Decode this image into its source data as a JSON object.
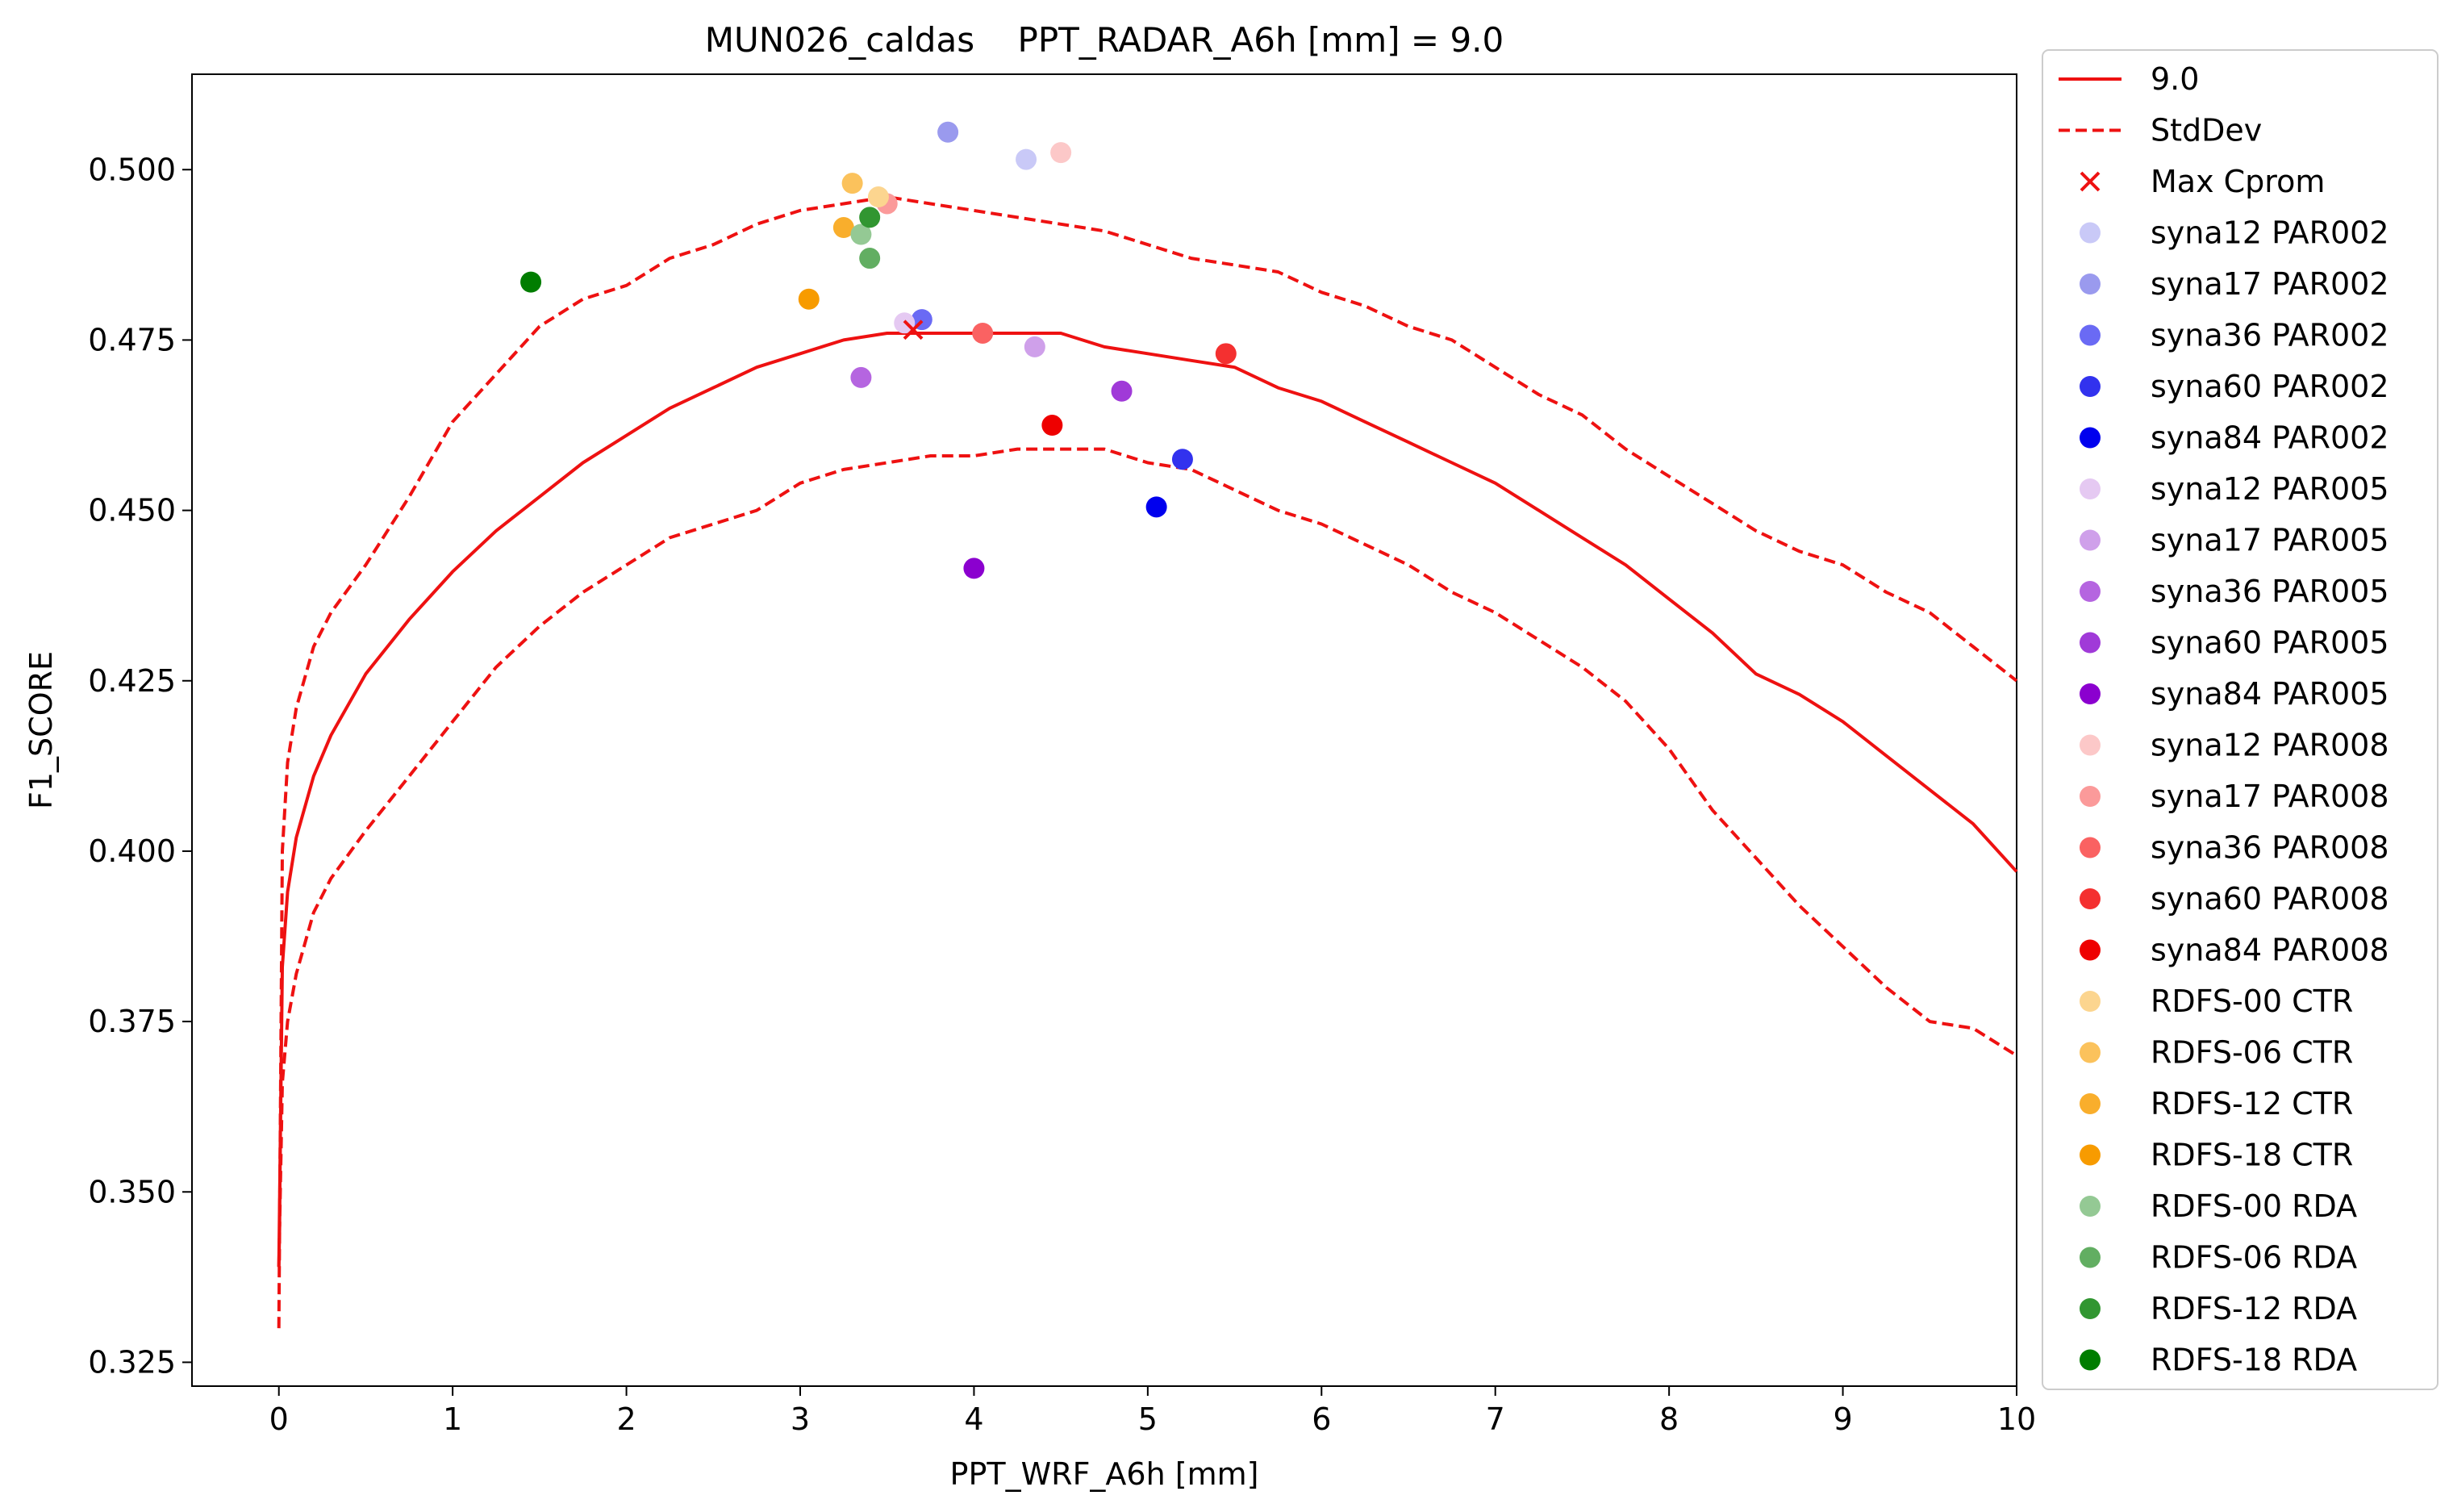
{
  "chart_data": {
    "type": "scatter",
    "title": "MUN026_caldas    PPT_RADAR_A6h [mm] = 9.0",
    "xlabel": "PPT_WRF_A6h [mm]",
    "ylabel": "F1_SCORE",
    "xlim": [
      -0.5,
      10
    ],
    "ylim": [
      0.3215,
      0.514
    ],
    "xticks": [
      0,
      1,
      2,
      3,
      4,
      5,
      6,
      7,
      8,
      9,
      10
    ],
    "xtick_labels": [
      "0",
      "1",
      "2",
      "3",
      "4",
      "5",
      "6",
      "7",
      "8",
      "9",
      "10"
    ],
    "yticks": [
      0.325,
      0.35,
      0.375,
      0.4,
      0.425,
      0.45,
      0.475,
      0.5
    ],
    "ytick_labels": [
      "0.325",
      "0.350",
      "0.375",
      "0.400",
      "0.425",
      "0.450",
      "0.475",
      "0.500"
    ],
    "grid": false,
    "legend_position": "outside-right",
    "curves": {
      "x": [
        0,
        0.02,
        0.05,
        0.1,
        0.2,
        0.3,
        0.5,
        0.75,
        1,
        1.25,
        1.5,
        1.75,
        2,
        2.25,
        2.5,
        2.75,
        3,
        3.25,
        3.5,
        3.75,
        4,
        4.25,
        4.5,
        4.75,
        5,
        5.25,
        5.5,
        5.75,
        6,
        6.25,
        6.5,
        6.75,
        7,
        7.25,
        7.5,
        7.75,
        8,
        8.25,
        8.5,
        8.75,
        9,
        9.25,
        9.5,
        9.75,
        10
      ],
      "series": [
        {
          "name": "9.0",
          "color": "#ee1111",
          "style": "solid",
          "values": [
            0.339,
            0.383,
            0.394,
            0.402,
            0.411,
            0.417,
            0.426,
            0.434,
            0.441,
            0.447,
            0.452,
            0.457,
            0.461,
            0.465,
            0.468,
            0.471,
            0.473,
            0.475,
            0.476,
            0.476,
            0.476,
            0.476,
            0.476,
            0.474,
            0.473,
            0.472,
            0.471,
            0.468,
            0.466,
            0.463,
            0.46,
            0.457,
            0.454,
            0.45,
            0.446,
            0.442,
            0.437,
            0.432,
            0.426,
            0.423,
            0.419,
            0.414,
            0.409,
            0.404,
            0.397
          ]
        },
        {
          "name": "StdDev",
          "color": "#ee1111",
          "style": "dashed",
          "values": [
            0.33,
            0.4,
            0.413,
            0.421,
            0.43,
            0.435,
            0.442,
            0.452,
            0.463,
            0.47,
            0.477,
            0.481,
            0.483,
            0.487,
            0.489,
            0.492,
            0.494,
            0.495,
            0.496,
            0.495,
            0.494,
            0.493,
            0.492,
            0.491,
            0.489,
            0.487,
            0.486,
            0.485,
            0.482,
            0.48,
            0.477,
            0.475,
            0.471,
            0.467,
            0.464,
            0.459,
            0.455,
            0.451,
            0.447,
            0.444,
            0.442,
            0.438,
            0.435,
            0.43,
            0.425
          ]
        },
        {
          "name": "",
          "color": "#ee1111",
          "style": "dashed",
          "values": [
            0.339,
            0.366,
            0.375,
            0.382,
            0.391,
            0.396,
            0.403,
            0.411,
            0.419,
            0.427,
            0.433,
            0.438,
            0.442,
            0.446,
            0.448,
            0.45,
            0.454,
            0.456,
            0.457,
            0.458,
            0.458,
            0.459,
            0.459,
            0.459,
            0.457,
            0.456,
            0.453,
            0.45,
            0.448,
            0.445,
            0.442,
            0.438,
            0.435,
            0.431,
            0.427,
            0.422,
            0.415,
            0.406,
            0.399,
            0.392,
            0.386,
            0.38,
            0.375,
            0.374,
            0.37
          ]
        }
      ]
    },
    "max_marker": {
      "name": "Max Cprom",
      "x": 3.65,
      "y": 0.4765,
      "color": "#ee1111",
      "marker": "x"
    },
    "points": [
      {
        "name": "syna12 PAR002",
        "x": 4.3,
        "y": 0.5015,
        "color": "#c9c9f7"
      },
      {
        "name": "syna17 PAR002",
        "x": 3.85,
        "y": 0.5055,
        "color": "#9a9aee"
      },
      {
        "name": "syna36 PAR002",
        "x": 3.7,
        "y": 0.478,
        "color": "#6a6af4"
      },
      {
        "name": "syna60 PAR002",
        "x": 5.2,
        "y": 0.4575,
        "color": "#3232ee"
      },
      {
        "name": "syna84 PAR002",
        "x": 5.05,
        "y": 0.4505,
        "color": "#0000ee"
      },
      {
        "name": "syna12 PAR005",
        "x": 3.6,
        "y": 0.4775,
        "color": "#e5c9f2"
      },
      {
        "name": "syna17 PAR005",
        "x": 4.35,
        "y": 0.474,
        "color": "#cfa0ea"
      },
      {
        "name": "syna36 PAR005",
        "x": 3.35,
        "y": 0.4695,
        "color": "#b565e0"
      },
      {
        "name": "syna60 PAR005",
        "x": 4.85,
        "y": 0.4675,
        "color": "#a03ad8"
      },
      {
        "name": "syna84 PAR005",
        "x": 4.0,
        "y": 0.4415,
        "color": "#8b00cf"
      },
      {
        "name": "syna12 PAR008",
        "x": 4.5,
        "y": 0.5025,
        "color": "#fcc8c8"
      },
      {
        "name": "syna17 PAR008",
        "x": 3.5,
        "y": 0.495,
        "color": "#fb9a9a"
      },
      {
        "name": "syna36 PAR008",
        "x": 4.05,
        "y": 0.476,
        "color": "#fa6262"
      },
      {
        "name": "syna60 PAR008",
        "x": 5.45,
        "y": 0.473,
        "color": "#f43030"
      },
      {
        "name": "syna84 PAR008",
        "x": 4.45,
        "y": 0.4625,
        "color": "#ee0000"
      },
      {
        "name": "RDFS-00 CTR",
        "x": 3.45,
        "y": 0.496,
        "color": "#fcd58f"
      },
      {
        "name": "RDFS-06 CTR",
        "x": 3.3,
        "y": 0.498,
        "color": "#fbc25c"
      },
      {
        "name": "RDFS-12 CTR",
        "x": 3.25,
        "y": 0.4915,
        "color": "#f9ae2c"
      },
      {
        "name": "RDFS-18 CTR",
        "x": 3.05,
        "y": 0.481,
        "color": "#f79b00"
      },
      {
        "name": "RDFS-00 RDA",
        "x": 3.35,
        "y": 0.4905,
        "color": "#94c994"
      },
      {
        "name": "RDFS-06 RDA",
        "x": 3.4,
        "y": 0.487,
        "color": "#62ae62"
      },
      {
        "name": "RDFS-12 RDA",
        "x": 3.4,
        "y": 0.493,
        "color": "#319631"
      },
      {
        "name": "RDFS-18 RDA",
        "x": 1.45,
        "y": 0.4835,
        "color": "#007d00"
      }
    ],
    "legend": [
      {
        "label": "9.0",
        "kind": "line",
        "color": "#ee1111"
      },
      {
        "label": "StdDev",
        "kind": "dashed",
        "color": "#ee1111"
      },
      {
        "label": "Max Cprom",
        "kind": "x",
        "color": "#ee1111"
      },
      {
        "label": "syna12 PAR002",
        "kind": "dot",
        "color": "#c9c9f7"
      },
      {
        "label": "syna17 PAR002",
        "kind": "dot",
        "color": "#9a9aee"
      },
      {
        "label": "syna36 PAR002",
        "kind": "dot",
        "color": "#6a6af4"
      },
      {
        "label": "syna60 PAR002",
        "kind": "dot",
        "color": "#3232ee"
      },
      {
        "label": "syna84 PAR002",
        "kind": "dot",
        "color": "#0000ee"
      },
      {
        "label": "syna12 PAR005",
        "kind": "dot",
        "color": "#e5c9f2"
      },
      {
        "label": "syna17 PAR005",
        "kind": "dot",
        "color": "#cfa0ea"
      },
      {
        "label": "syna36 PAR005",
        "kind": "dot",
        "color": "#b565e0"
      },
      {
        "label": "syna60 PAR005",
        "kind": "dot",
        "color": "#a03ad8"
      },
      {
        "label": "syna84 PAR005",
        "kind": "dot",
        "color": "#8b00cf"
      },
      {
        "label": "syna12 PAR008",
        "kind": "dot",
        "color": "#fcc8c8"
      },
      {
        "label": "syna17 PAR008",
        "kind": "dot",
        "color": "#fb9a9a"
      },
      {
        "label": "syna36 PAR008",
        "kind": "dot",
        "color": "#fa6262"
      },
      {
        "label": "syna60 PAR008",
        "kind": "dot",
        "color": "#f43030"
      },
      {
        "label": "syna84 PAR008",
        "kind": "dot",
        "color": "#ee0000"
      },
      {
        "label": " RDFS-00 CTR",
        "kind": "dot",
        "color": "#fcd58f"
      },
      {
        "label": " RDFS-06 CTR",
        "kind": "dot",
        "color": "#fbc25c"
      },
      {
        "label": " RDFS-12 CTR",
        "kind": "dot",
        "color": "#f9ae2c"
      },
      {
        "label": " RDFS-18 CTR",
        "kind": "dot",
        "color": "#f79b00"
      },
      {
        "label": " RDFS-00 RDA",
        "kind": "dot",
        "color": "#94c994"
      },
      {
        "label": " RDFS-06 RDA",
        "kind": "dot",
        "color": "#62ae62"
      },
      {
        "label": " RDFS-12 RDA",
        "kind": "dot",
        "color": "#319631"
      },
      {
        "label": " RDFS-18 RDA",
        "kind": "dot",
        "color": "#007d00"
      }
    ]
  }
}
